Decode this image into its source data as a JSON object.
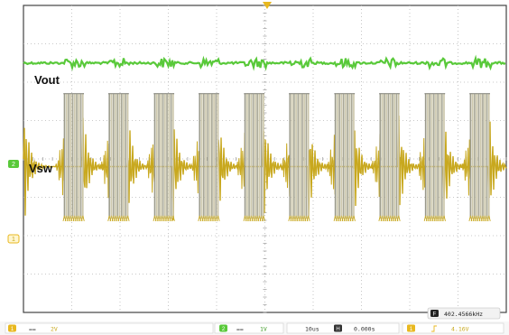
{
  "chart_data": {
    "type": "line",
    "title": "",
    "xlabel": "",
    "ylabel": "",
    "grid": true,
    "grid_divisions": {
      "x": 10,
      "y": 8
    },
    "series": [
      {
        "name": "Vout",
        "color": "#59c93a",
        "level_div": 1.5,
        "ripple_div": 0.08
      },
      {
        "name": "Vsw",
        "color": "#c8a81e",
        "baseline_div": 4.2,
        "high_div": 2.3,
        "low_div": 5.55,
        "burst_starts_div": [
          0.85,
          1.78,
          2.72,
          3.65,
          4.59,
          5.52,
          6.46,
          7.39,
          8.33,
          9.26
        ],
        "burst_width_div": 0.38
      }
    ],
    "legend": [
      "Vout",
      "Vsw"
    ]
  },
  "labels": {
    "vout": "Vout",
    "vsw": "Vsw"
  },
  "status_bar": {
    "ch1_scale": "2V",
    "ch2_scale": "1V",
    "timebase": "10us",
    "trigger_pos": "0.000s",
    "trigger_level": "4.16V",
    "frequency": "402.4566kHz"
  },
  "colors": {
    "ch1": "#c8a81e",
    "ch2": "#59c93a",
    "grid": "#b8b8b8",
    "frame": "#444444"
  }
}
